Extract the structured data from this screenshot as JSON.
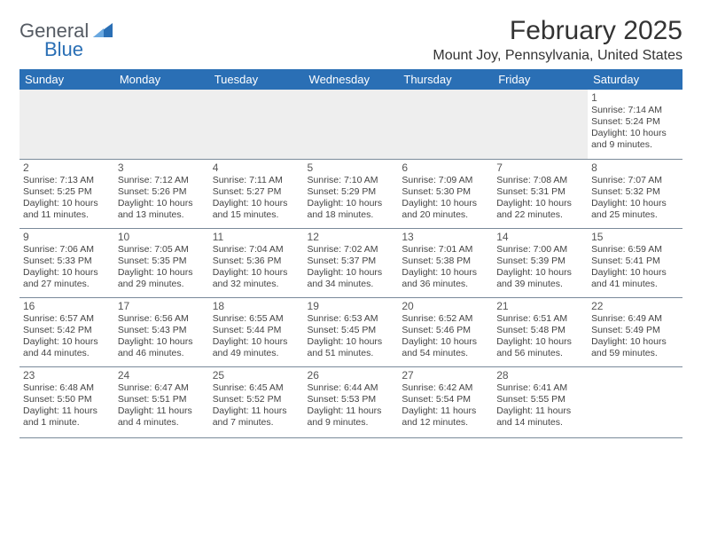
{
  "logo": {
    "word1": "General",
    "word2": "Blue",
    "word1_color": "#555b63",
    "word2_color": "#2a6fb5",
    "sail_color": "#2a6fb5"
  },
  "title": "February 2025",
  "location": "Mount Joy, Pennsylvania, United States",
  "colors": {
    "header_bg": "#2a6fb5",
    "header_fg": "#ffffff",
    "rule": "#7a8a9a",
    "empty_bg": "#eeeeee",
    "text": "#444444"
  },
  "day_headers": [
    "Sunday",
    "Monday",
    "Tuesday",
    "Wednesday",
    "Thursday",
    "Friday",
    "Saturday"
  ],
  "weeks": [
    [
      null,
      null,
      null,
      null,
      null,
      null,
      {
        "n": "1",
        "sr": "Sunrise: 7:14 AM",
        "ss": "Sunset: 5:24 PM",
        "d1": "Daylight: 10 hours",
        "d2": "and 9 minutes."
      }
    ],
    [
      {
        "n": "2",
        "sr": "Sunrise: 7:13 AM",
        "ss": "Sunset: 5:25 PM",
        "d1": "Daylight: 10 hours",
        "d2": "and 11 minutes."
      },
      {
        "n": "3",
        "sr": "Sunrise: 7:12 AM",
        "ss": "Sunset: 5:26 PM",
        "d1": "Daylight: 10 hours",
        "d2": "and 13 minutes."
      },
      {
        "n": "4",
        "sr": "Sunrise: 7:11 AM",
        "ss": "Sunset: 5:27 PM",
        "d1": "Daylight: 10 hours",
        "d2": "and 15 minutes."
      },
      {
        "n": "5",
        "sr": "Sunrise: 7:10 AM",
        "ss": "Sunset: 5:29 PM",
        "d1": "Daylight: 10 hours",
        "d2": "and 18 minutes."
      },
      {
        "n": "6",
        "sr": "Sunrise: 7:09 AM",
        "ss": "Sunset: 5:30 PM",
        "d1": "Daylight: 10 hours",
        "d2": "and 20 minutes."
      },
      {
        "n": "7",
        "sr": "Sunrise: 7:08 AM",
        "ss": "Sunset: 5:31 PM",
        "d1": "Daylight: 10 hours",
        "d2": "and 22 minutes."
      },
      {
        "n": "8",
        "sr": "Sunrise: 7:07 AM",
        "ss": "Sunset: 5:32 PM",
        "d1": "Daylight: 10 hours",
        "d2": "and 25 minutes."
      }
    ],
    [
      {
        "n": "9",
        "sr": "Sunrise: 7:06 AM",
        "ss": "Sunset: 5:33 PM",
        "d1": "Daylight: 10 hours",
        "d2": "and 27 minutes."
      },
      {
        "n": "10",
        "sr": "Sunrise: 7:05 AM",
        "ss": "Sunset: 5:35 PM",
        "d1": "Daylight: 10 hours",
        "d2": "and 29 minutes."
      },
      {
        "n": "11",
        "sr": "Sunrise: 7:04 AM",
        "ss": "Sunset: 5:36 PM",
        "d1": "Daylight: 10 hours",
        "d2": "and 32 minutes."
      },
      {
        "n": "12",
        "sr": "Sunrise: 7:02 AM",
        "ss": "Sunset: 5:37 PM",
        "d1": "Daylight: 10 hours",
        "d2": "and 34 minutes."
      },
      {
        "n": "13",
        "sr": "Sunrise: 7:01 AM",
        "ss": "Sunset: 5:38 PM",
        "d1": "Daylight: 10 hours",
        "d2": "and 36 minutes."
      },
      {
        "n": "14",
        "sr": "Sunrise: 7:00 AM",
        "ss": "Sunset: 5:39 PM",
        "d1": "Daylight: 10 hours",
        "d2": "and 39 minutes."
      },
      {
        "n": "15",
        "sr": "Sunrise: 6:59 AM",
        "ss": "Sunset: 5:41 PM",
        "d1": "Daylight: 10 hours",
        "d2": "and 41 minutes."
      }
    ],
    [
      {
        "n": "16",
        "sr": "Sunrise: 6:57 AM",
        "ss": "Sunset: 5:42 PM",
        "d1": "Daylight: 10 hours",
        "d2": "and 44 minutes."
      },
      {
        "n": "17",
        "sr": "Sunrise: 6:56 AM",
        "ss": "Sunset: 5:43 PM",
        "d1": "Daylight: 10 hours",
        "d2": "and 46 minutes."
      },
      {
        "n": "18",
        "sr": "Sunrise: 6:55 AM",
        "ss": "Sunset: 5:44 PM",
        "d1": "Daylight: 10 hours",
        "d2": "and 49 minutes."
      },
      {
        "n": "19",
        "sr": "Sunrise: 6:53 AM",
        "ss": "Sunset: 5:45 PM",
        "d1": "Daylight: 10 hours",
        "d2": "and 51 minutes."
      },
      {
        "n": "20",
        "sr": "Sunrise: 6:52 AM",
        "ss": "Sunset: 5:46 PM",
        "d1": "Daylight: 10 hours",
        "d2": "and 54 minutes."
      },
      {
        "n": "21",
        "sr": "Sunrise: 6:51 AM",
        "ss": "Sunset: 5:48 PM",
        "d1": "Daylight: 10 hours",
        "d2": "and 56 minutes."
      },
      {
        "n": "22",
        "sr": "Sunrise: 6:49 AM",
        "ss": "Sunset: 5:49 PM",
        "d1": "Daylight: 10 hours",
        "d2": "and 59 minutes."
      }
    ],
    [
      {
        "n": "23",
        "sr": "Sunrise: 6:48 AM",
        "ss": "Sunset: 5:50 PM",
        "d1": "Daylight: 11 hours",
        "d2": "and 1 minute."
      },
      {
        "n": "24",
        "sr": "Sunrise: 6:47 AM",
        "ss": "Sunset: 5:51 PM",
        "d1": "Daylight: 11 hours",
        "d2": "and 4 minutes."
      },
      {
        "n": "25",
        "sr": "Sunrise: 6:45 AM",
        "ss": "Sunset: 5:52 PM",
        "d1": "Daylight: 11 hours",
        "d2": "and 7 minutes."
      },
      {
        "n": "26",
        "sr": "Sunrise: 6:44 AM",
        "ss": "Sunset: 5:53 PM",
        "d1": "Daylight: 11 hours",
        "d2": "and 9 minutes."
      },
      {
        "n": "27",
        "sr": "Sunrise: 6:42 AM",
        "ss": "Sunset: 5:54 PM",
        "d1": "Daylight: 11 hours",
        "d2": "and 12 minutes."
      },
      {
        "n": "28",
        "sr": "Sunrise: 6:41 AM",
        "ss": "Sunset: 5:55 PM",
        "d1": "Daylight: 11 hours",
        "d2": "and 14 minutes."
      },
      null
    ]
  ]
}
